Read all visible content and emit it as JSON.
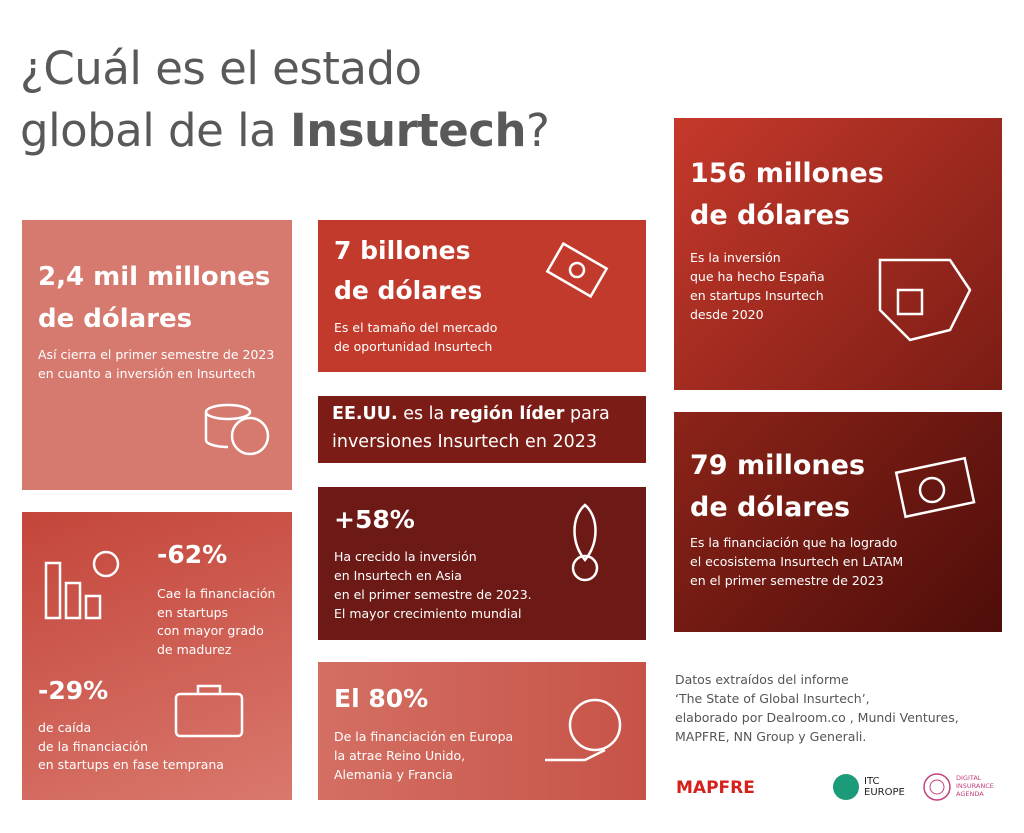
{
  "title": {
    "line1": "¿Cuál es el estado",
    "line2_start": "global de la ",
    "line2_bold": "Insurtech",
    "line2_end": "?"
  },
  "cards": [
    {
      "heading": [
        "2,4 mil millones",
        "de dólares"
      ],
      "body": [
        "Así cierra el primer semestre de 2023",
        "en cuanto a inversión en Insurtech"
      ]
    },
    {
      "heading": [
        "7 billones",
        "de dólares"
      ],
      "body": [
        "Es el tamaño del mercado",
        "de oportunidad Insurtech"
      ]
    },
    {
      "heading": [
        "+58%"
      ],
      "body": [
        "Ha crecido la inversión",
        "en Insurtech en Asia",
        "en el primer semestre de 2023.",
        "El mayor crecimiento mundial"
      ]
    },
    {
      "heading": [
        "El 80%"
      ],
      "body": [
        "De la financiación en Europa",
        "la atrae Reino Unido,",
        "Alemania y Francia"
      ]
    },
    {
      "heading": [
        "156 millones",
        "de dólares"
      ],
      "body": [
        "Es la inversión",
        "que ha hecho España",
        "en startups Insurtech",
        "desde 2020"
      ]
    },
    {
      "heading": [
        "79 millones",
        "de dólares"
      ],
      "body": [
        "Es la financiación que ha logrado",
        "el ecosistema Insurtech en LATAM",
        "en el primer semestre de 2023"
      ]
    }
  ],
  "highlight": {
    "line1": [
      "EE.UU.",
      " es la ",
      "región líder",
      " para"
    ],
    "line2": "inversiones Insurtech en 2023"
  },
  "declines": [
    {
      "heading": "-62%",
      "body": [
        "Cae la financiación",
        "en startups",
        "con mayor grado",
        "de madurez"
      ]
    },
    {
      "heading": "-29%",
      "body": [
        "de caída",
        "de la financiación",
        "en startups en fase temprana"
      ]
    }
  ],
  "source": [
    "Datos extraídos del informe",
    "‘The State of Global Insurtech’,",
    "elaborado por Dealroom.co , Mundi Ventures,",
    "MAPFRE, NN Group y Generali."
  ],
  "logos": {
    "mapfre": "MAPFRE",
    "itc": [
      "ITC",
      "EUROPE"
    ],
    "dia": [
      "DIGITAL",
      "INSURANCE",
      "AGENDA"
    ]
  }
}
